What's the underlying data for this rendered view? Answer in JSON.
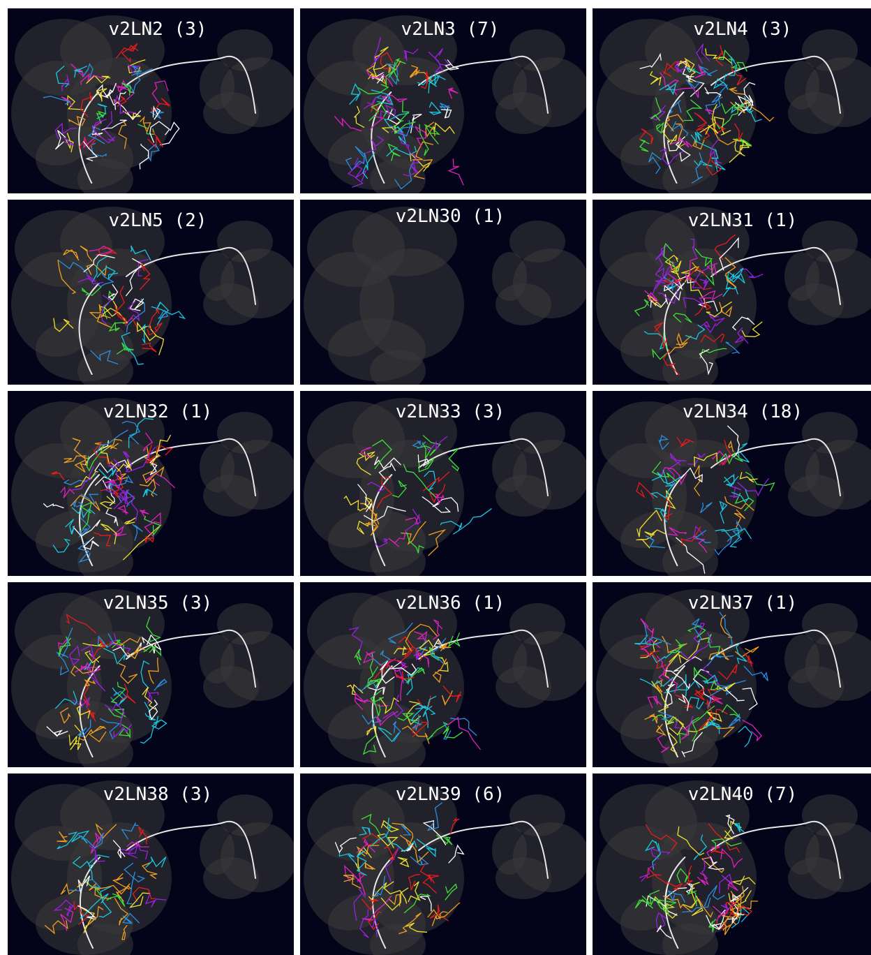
{
  "panels": [
    {
      "label": "v2LN2 (3)"
    },
    {
      "label": "v2LN3 (7)"
    },
    {
      "label": "v2LN4 (3)"
    },
    {
      "label": "v2LN5 (2)"
    },
    {
      "label": "v2LN30 (1)"
    },
    {
      "label": "v2LN31 (1)"
    },
    {
      "label": "v2LN32 (1)"
    },
    {
      "label": "v2LN33 (3)"
    },
    {
      "label": "v2LN34 (18)"
    },
    {
      "label": "v2LN35 (3)"
    },
    {
      "label": "v2LN36 (1)"
    },
    {
      "label": "v2LN37 (1)"
    },
    {
      "label": "v2LN38 (3)"
    },
    {
      "label": "v2LN39 (6)"
    },
    {
      "label": "v2LN40 (7)"
    }
  ]
}
